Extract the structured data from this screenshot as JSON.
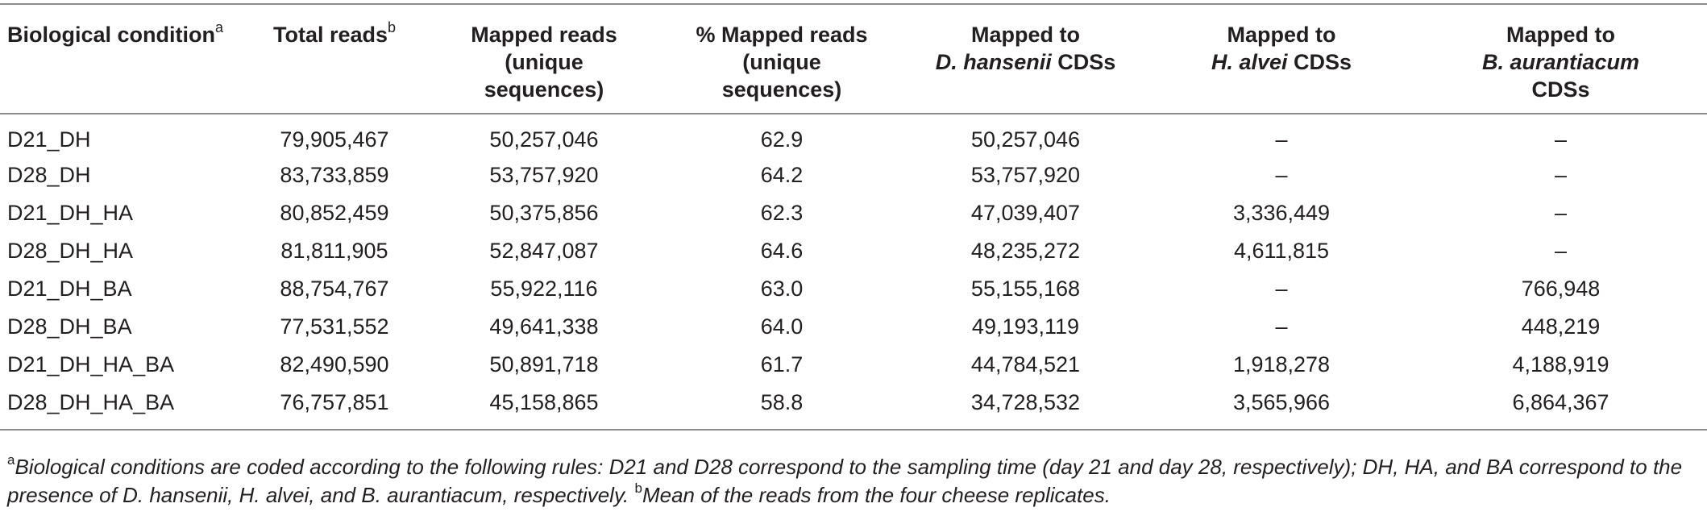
{
  "columns": [
    {
      "line1": "Biological condition",
      "sup": "a"
    },
    {
      "line1": "Total reads",
      "sup": "b"
    },
    {
      "line1": "Mapped reads",
      "line2": "(unique",
      "line3": "sequences)"
    },
    {
      "line1": "% Mapped reads",
      "line2": "(unique",
      "line3": "sequences)"
    },
    {
      "line1": "Mapped to",
      "species": "D. hansenii",
      "suffix": "CDSs"
    },
    {
      "line1": "Mapped to",
      "species": "H. alvei",
      "suffix": "CDSs"
    },
    {
      "line1": "Mapped to",
      "species": "B. aurantiacum",
      "line3": "CDSs"
    }
  ],
  "rows": [
    [
      "D21_DH",
      "79,905,467",
      "50,257,046",
      "62.9",
      "50,257,046",
      "–",
      "–"
    ],
    [
      "D28_DH",
      "83,733,859",
      "53,757,920",
      "64.2",
      "53,757,920",
      "–",
      "–"
    ],
    [
      "D21_DH_HA",
      "80,852,459",
      "50,375,856",
      "62.3",
      "47,039,407",
      "3,336,449",
      "–"
    ],
    [
      "D28_DH_HA",
      "81,811,905",
      "52,847,087",
      "64.6",
      "48,235,272",
      "4,611,815",
      "–"
    ],
    [
      "D21_DH_BA",
      "88,754,767",
      "55,922,116",
      "63.0",
      "55,155,168",
      "–",
      "766,948"
    ],
    [
      "D28_DH_BA",
      "77,531,552",
      "49,641,338",
      "64.0",
      "49,193,119",
      "–",
      "448,219"
    ],
    [
      "D21_DH_HA_BA",
      "82,490,590",
      "50,891,718",
      "61.7",
      "44,784,521",
      "1,918,278",
      "4,188,919"
    ],
    [
      "D28_DH_HA_BA",
      "76,757,851",
      "45,158,865",
      "58.8",
      "34,728,532",
      "3,565,966",
      "6,864,367"
    ]
  ],
  "footnote": {
    "a_mark": "a",
    "a_text": "Biological conditions are coded according to the following rules: D21 and D28 correspond to the sampling time (day 21 and day 28, respectively); DH, HA, and BA correspond to the presence of D. hansenii, H. alvei, and B. aurantiacum, respectively.",
    "b_mark": "b",
    "b_text": "Mean of the reads from the four cheese replicates."
  }
}
